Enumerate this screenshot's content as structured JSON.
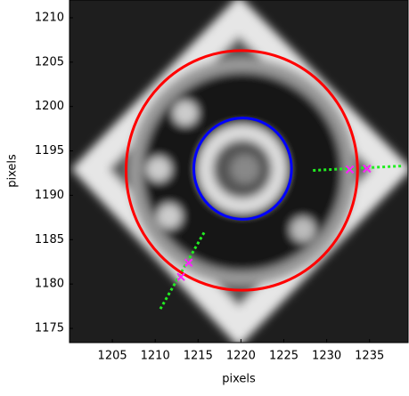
{
  "chart_data": {
    "type": "overlay",
    "xlabel": "pixels",
    "ylabel": "pixels",
    "xlim": [
      1200,
      1239.5
    ],
    "ylim": [
      1173.4,
      1212
    ],
    "xticks": [
      1205,
      1210,
      1215,
      1220,
      1225,
      1230,
      1235
    ],
    "yticks": [
      1175,
      1180,
      1185,
      1190,
      1195,
      1200,
      1205,
      1210
    ],
    "circles": [
      {
        "color": "#ff0000",
        "cx": 1220.1,
        "cy": 1192.8,
        "r": 13.5
      },
      {
        "color": "#0000ff",
        "cx": 1220.2,
        "cy": 1193.0,
        "r": 5.7
      }
    ],
    "lines": [
      {
        "color": "#22ee22",
        "x": [
          1228.4,
          1238.8
        ],
        "y": [
          1192.8,
          1193.3
        ]
      },
      {
        "color": "#22ee22",
        "x": [
          1215.7,
          1210.6
        ],
        "y": [
          1185.8,
          1177.2
        ]
      }
    ],
    "markers": {
      "color": "#ff22ff",
      "x": [
        1232.7,
        1234.7,
        1213.9,
        1213.0
      ],
      "y": [
        1192.9,
        1193.0,
        1182.4,
        1180.8
      ]
    }
  }
}
